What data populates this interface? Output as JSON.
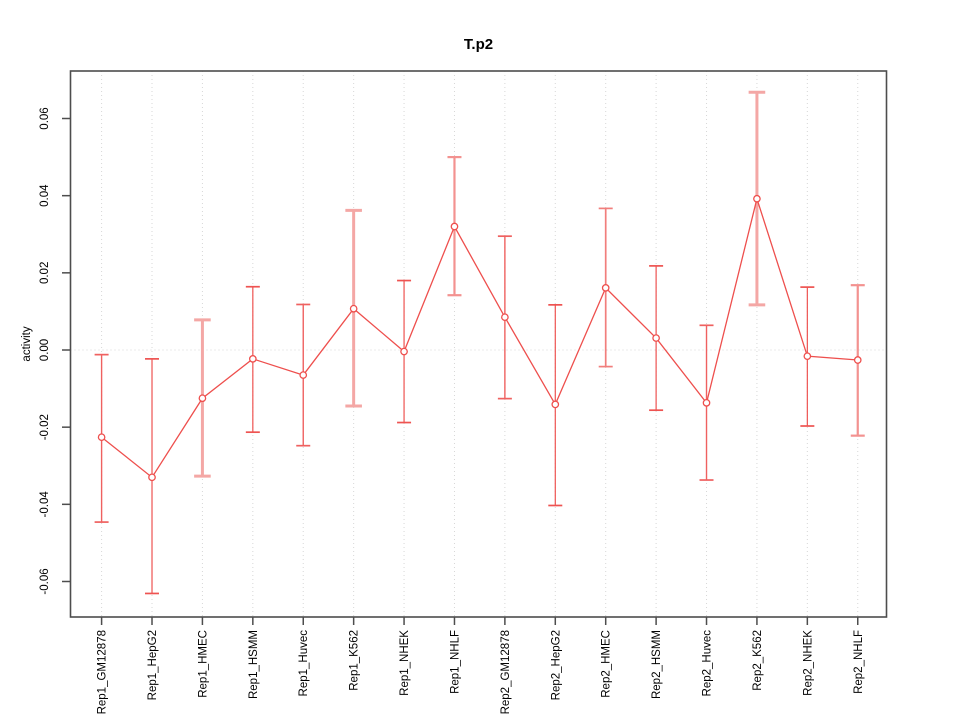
{
  "title": "T.p2",
  "chart_data": {
    "type": "line",
    "title": "T.p2",
    "xlabel": "",
    "ylabel": "activity",
    "error_bars": true,
    "grid": "vertical dotted gridline per category, dotted horizontal line at y=0",
    "legend": "none",
    "ylim": [
      -0.069,
      0.072
    ],
    "yticks": [
      -0.06,
      -0.04,
      -0.02,
      0.0,
      0.02,
      0.04,
      0.06
    ],
    "ytick_labels": [
      "-0.06",
      "-0.04",
      "-0.02",
      "0.00",
      "0.02",
      "0.04",
      "0.06"
    ],
    "categories": [
      "Rep1_GM12878",
      "Rep1_HepG2",
      "Rep1_HMEC",
      "Rep1_HSMM",
      "Rep1_Huvec",
      "Rep1_K562",
      "Rep1_NHEK",
      "Rep1_NHLF",
      "Rep2_GM12878",
      "Rep2_HepG2",
      "Rep2_HMEC",
      "Rep2_HSMM",
      "Rep2_Huvec",
      "Rep2_K562",
      "Rep2_NHEK",
      "Rep2_NHLF"
    ],
    "series": [
      {
        "name": "activity",
        "values": [
          -0.0226,
          -0.033,
          -0.0125,
          -0.0023,
          -0.0065,
          0.0107,
          -0.0004,
          0.032,
          0.0085,
          -0.0141,
          0.0161,
          0.0031,
          -0.0137,
          0.0392,
          -0.0016,
          -0.0026
        ],
        "err_hi": [
          -0.0012,
          -0.0023,
          0.0078,
          0.0164,
          0.0118,
          0.0362,
          0.018,
          0.05,
          0.0295,
          0.0117,
          0.0367,
          0.0218,
          0.0064,
          0.0668,
          0.0163,
          0.0168
        ],
        "err_lo": [
          -0.0446,
          -0.0631,
          -0.0327,
          -0.0213,
          -0.0248,
          -0.0145,
          -0.0188,
          0.0142,
          -0.0126,
          -0.0403,
          -0.0043,
          -0.0156,
          -0.0337,
          0.0117,
          -0.0197,
          -0.0222
        ]
      }
    ],
    "bar_widths": [
      1.4,
      1.2,
      3.0,
      1.2,
      1.4,
      3.0,
      1.2,
      2.2,
      1.4,
      1.2,
      1.7,
      1.2,
      1.4,
      3.0,
      1.2,
      2.2
    ],
    "bar_colors": [
      "#ef6160",
      "#ee5351",
      "#f4a7a5",
      "#ee5351",
      "#ef6160",
      "#f4a7a5",
      "#ee5351",
      "#f39290",
      "#ef6160",
      "#ee5351",
      "#f17e7c",
      "#ee5351",
      "#ef6160",
      "#f4a7a5",
      "#ee5351",
      "#f39290"
    ],
    "colors": {
      "line": "#ee4f4d",
      "marker_stroke": "#ee4f4d",
      "marker_fill": "#ffffff",
      "grid": "#d7d7d7",
      "axis": "#4d4d4d",
      "background": "#ffffff"
    }
  }
}
